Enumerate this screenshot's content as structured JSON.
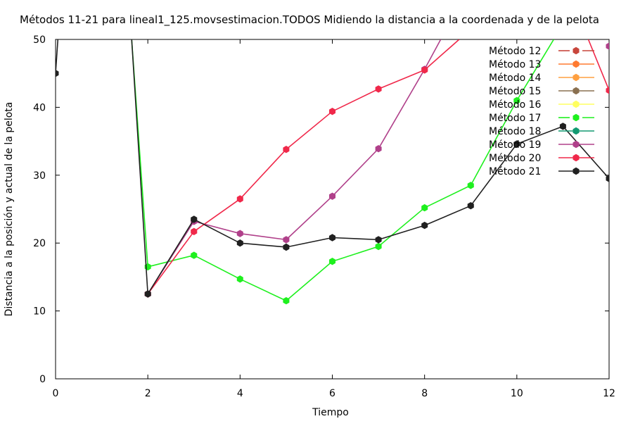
{
  "chart_data": {
    "type": "line",
    "title": "Métodos 11-21 para lineal1_125.movsestimacion.TODOS Midiendo la distancia a la coordenada y de la pelota",
    "xlabel": "Tiempo",
    "ylabel": "Distancia a la posición y actual de la pelota",
    "xlim": [
      0,
      12
    ],
    "ylim": [
      0,
      50
    ],
    "xticks": [
      0,
      2,
      4,
      6,
      8,
      10,
      12
    ],
    "yticks": [
      0,
      10,
      20,
      30,
      40,
      50
    ],
    "grid": false,
    "legend_position": "top-right",
    "series": [
      {
        "name": "Método 12",
        "color": "#c8463c",
        "dashed": true,
        "x": [],
        "y": []
      },
      {
        "name": "Método 13",
        "color": "#ff7a30",
        "dashed": false,
        "x": [],
        "y": []
      },
      {
        "name": "Método 14",
        "color": "#ffa040",
        "dashed": false,
        "x": [],
        "y": []
      },
      {
        "name": "Método 15",
        "color": "#8a7050",
        "dashed": false,
        "x": [],
        "y": []
      },
      {
        "name": "Método 16",
        "color": "#ffff60",
        "dashed": false,
        "x": [],
        "y": []
      },
      {
        "name": "Método 17",
        "color": "#1ef01e",
        "dashed": true,
        "x": [
          1.65,
          2,
          3,
          4,
          5,
          6,
          7,
          8,
          9,
          10,
          10.8
        ],
        "y": [
          50,
          16.5,
          18.2,
          14.7,
          11.5,
          17.3,
          19.5,
          25.2,
          28.5,
          41,
          50
        ]
      },
      {
        "name": "Método 18",
        "color": "#139a72",
        "dashed": false,
        "x": [],
        "y": []
      },
      {
        "name": "Método 19",
        "color": "#b0408a",
        "dashed": false,
        "x": [
          2,
          3,
          4,
          5,
          6,
          7,
          8,
          8.35,
          12
        ],
        "y": [
          12.5,
          23.2,
          21.4,
          20.5,
          26.9,
          33.9,
          45.6,
          50,
          49
        ],
        "gap_after": 7
      },
      {
        "name": "Método 20",
        "color": "#f0284a",
        "dashed": false,
        "x": [
          2,
          3,
          4,
          5,
          6,
          7,
          8,
          8.75,
          11.55,
          12
        ],
        "y": [
          12.5,
          21.7,
          26.5,
          33.8,
          39.4,
          42.7,
          45.5,
          50,
          50,
          42.5
        ],
        "gap_after": 7
      },
      {
        "name": "Método 21",
        "color": "#202020",
        "dashed": false,
        "x": [
          0,
          0.05,
          1.65,
          2,
          3,
          4,
          5,
          6,
          7,
          8,
          9,
          10,
          11,
          12
        ],
        "y": [
          45,
          50,
          50,
          12.5,
          23.5,
          20,
          19.4,
          20.8,
          20.5,
          22.6,
          25.5,
          34.6,
          37.2,
          29.5
        ],
        "gap_after": 1
      }
    ]
  }
}
